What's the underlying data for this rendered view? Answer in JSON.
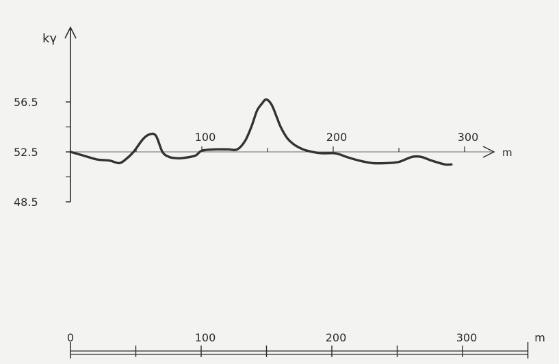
{
  "chart_data": {
    "type": "line",
    "title": "",
    "xlabel": "m",
    "ylabel": "kγ",
    "xlim": [
      -8,
      340
    ],
    "ylim": [
      48.5,
      60.5
    ],
    "grid": false,
    "legend": "none",
    "x_tick_labels": [
      {
        "value": 100,
        "label": "100"
      },
      {
        "value": 200,
        "label": "200"
      },
      {
        "value": 300,
        "label": "300"
      }
    ],
    "y_tick_labels": [
      {
        "value": 56.5,
        "label": "56.5"
      },
      {
        "value": 52.5,
        "label": "52.5"
      },
      {
        "value": 48.5,
        "label": "48.5"
      }
    ],
    "y_minor_ticks": [
      50.5,
      54.5
    ],
    "series": [
      {
        "x": [
          0,
          10,
          20,
          30,
          37,
          42,
          48,
          55,
          60,
          65,
          70,
          75,
          80,
          85,
          95,
          100,
          110,
          120,
          127,
          133,
          138,
          142,
          146,
          149,
          153,
          157,
          160,
          165,
          170,
          175,
          180,
          190,
          200,
          205,
          210,
          220,
          230,
          240,
          250,
          260,
          267,
          275,
          285,
          290
        ],
        "y": [
          52.5,
          52.2,
          51.9,
          51.8,
          51.6,
          51.9,
          52.5,
          53.5,
          53.9,
          53.8,
          52.5,
          52.1,
          52.0,
          52.0,
          52.2,
          52.6,
          52.7,
          52.7,
          52.7,
          53.4,
          54.6,
          55.8,
          56.4,
          56.7,
          56.3,
          55.3,
          54.5,
          53.6,
          53.1,
          52.8,
          52.6,
          52.4,
          52.4,
          52.3,
          52.1,
          51.8,
          51.6,
          51.6,
          51.7,
          52.1,
          52.1,
          51.8,
          51.5,
          51.5
        ],
        "color": "#333333"
      }
    ],
    "scale_bar": {
      "labels": [
        "0",
        "100",
        "200",
        "300",
        "m"
      ],
      "major_ticks": [
        0,
        100,
        200,
        300
      ],
      "minor_ticks": [
        50,
        150,
        250
      ],
      "end": 350
    }
  }
}
